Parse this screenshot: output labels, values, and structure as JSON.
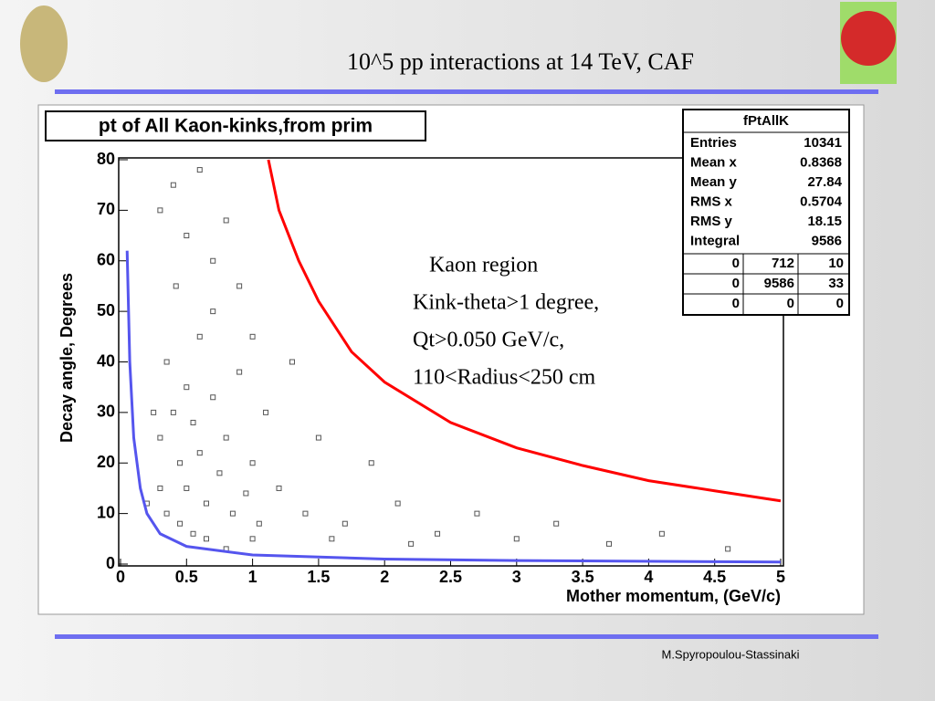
{
  "header": {
    "title": "10^5  pp interactions at 14 TeV,   CAF"
  },
  "footer": {
    "author": "M.Spyropoulou-Stassinaki"
  },
  "chart_data": {
    "type": "scatter",
    "title": "pt of All Kaon-kinks,from prim",
    "xlabel": "Mother momentum, (GeV/c)",
    "ylabel": "Decay angle, Degrees",
    "xlim": [
      0,
      5
    ],
    "ylim": [
      0,
      80
    ],
    "xticks": [
      0,
      0.5,
      1,
      1.5,
      2,
      2.5,
      3,
      3.5,
      4,
      4.5,
      5
    ],
    "yticks": [
      0,
      10,
      20,
      30,
      40,
      50,
      60,
      70,
      80
    ],
    "annotation": [
      "Kaon region",
      "Kink-theta>1 degree,",
      "Qt>0.050 GeV/c,",
      "110<Radius<250 cm"
    ],
    "stats": {
      "name": "fPtAllK",
      "entries": [
        [
          "Entries",
          "10341"
        ],
        [
          "Mean x",
          "0.8368"
        ],
        [
          "Mean y",
          "27.84"
        ],
        [
          "RMS x",
          "0.5704"
        ],
        [
          "RMS y",
          "18.15"
        ],
        [
          "Integral",
          "9586"
        ]
      ],
      "grid": [
        [
          "0",
          "712",
          "10"
        ],
        [
          "0",
          "9586",
          "33"
        ],
        [
          "0",
          "0",
          "0"
        ]
      ]
    },
    "points": {
      "color": "#555555",
      "x": [
        0.3,
        0.35,
        0.4,
        0.42,
        0.45,
        0.5,
        0.5,
        0.55,
        0.6,
        0.6,
        0.65,
        0.7,
        0.7,
        0.75,
        0.8,
        0.85,
        0.9,
        0.95,
        1.0,
        1.05,
        0.3,
        0.4,
        0.5,
        0.6,
        0.7,
        0.8,
        0.9,
        1.0,
        0.35,
        0.45,
        0.55,
        0.65,
        0.25,
        0.3,
        1.1,
        1.2,
        1.3,
        1.4,
        1.5,
        1.7,
        1.9,
        2.1,
        2.4,
        2.7,
        3.0,
        3.3,
        3.7,
        4.1,
        4.6,
        2.2,
        1.6,
        0.2,
        0.8,
        1.0
      ],
      "values": [
        25,
        40,
        30,
        55,
        20,
        35,
        15,
        28,
        45,
        22,
        12,
        33,
        60,
        18,
        25,
        10,
        38,
        14,
        20,
        8,
        70,
        75,
        65,
        78,
        50,
        68,
        55,
        45,
        10,
        8,
        6,
        5,
        30,
        15,
        30,
        15,
        40,
        10,
        25,
        8,
        20,
        12,
        6,
        10,
        5,
        8,
        4,
        6,
        3,
        4,
        5,
        12,
        3,
        5
      ]
    },
    "lines": [
      {
        "color": "#ff0000",
        "x": [
          1.12,
          1.2,
          1.35,
          1.5,
          1.75,
          2,
          2.5,
          3,
          3.5,
          4,
          4.5,
          5
        ],
        "values": [
          80,
          70,
          60,
          52,
          42,
          36,
          28,
          23,
          19.5,
          16.5,
          14.5,
          12.5
        ]
      },
      {
        "color": "#5555ee",
        "x": [
          0.05,
          0.07,
          0.1,
          0.15,
          0.2,
          0.3,
          0.5,
          1,
          2,
          3,
          5
        ],
        "values": [
          62,
          40,
          25,
          15,
          10,
          6,
          3.5,
          1.8,
          1,
          0.7,
          0.4
        ]
      }
    ]
  }
}
